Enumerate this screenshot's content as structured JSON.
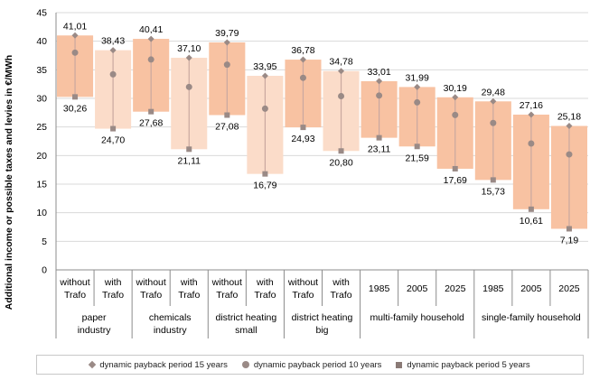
{
  "chart_data": {
    "type": "bar",
    "ylabel": "Additional income or possible taxes and levies in €/MWh",
    "ylim": [
      0,
      45
    ],
    "yticks": [
      "0",
      "5",
      "10",
      "15",
      "20",
      "25",
      "30",
      "35",
      "40",
      "45"
    ],
    "grid": true,
    "legend_position": "bottom",
    "categories": [
      {
        "l1": "without",
        "l2": "Trafo"
      },
      {
        "l1": "with",
        "l2": "Trafo"
      },
      {
        "l1": "without",
        "l2": "Trafo"
      },
      {
        "l1": "with",
        "l2": "Trafo"
      },
      {
        "l1": "without",
        "l2": "Trafo"
      },
      {
        "l1": "with",
        "l2": "Trafo"
      },
      {
        "l1": "without",
        "l2": "Trafo"
      },
      {
        "l1": "with",
        "l2": "Trafo"
      },
      {
        "l1": "1985",
        "l2": ""
      },
      {
        "l1": "2005",
        "l2": ""
      },
      {
        "l1": "2025",
        "l2": ""
      },
      {
        "l1": "1985",
        "l2": ""
      },
      {
        "l1": "2005",
        "l2": ""
      },
      {
        "l1": "2025",
        "l2": ""
      }
    ],
    "groups": [
      {
        "l1": "paper",
        "l2": "industry",
        "span": 2
      },
      {
        "l1": "chemicals",
        "l2": "industry",
        "span": 2
      },
      {
        "l1": "district heating",
        "l2": "small",
        "span": 2
      },
      {
        "l1": "district heating",
        "l2": "big",
        "span": 2
      },
      {
        "l1": "multi-family household",
        "l2": "",
        "span": 3
      },
      {
        "l1": "single-family household",
        "l2": "",
        "span": 3
      }
    ],
    "series": [
      {
        "name": "dynamic payback period 15 years",
        "marker": "diamond",
        "values": [
          41.01,
          38.43,
          40.41,
          37.1,
          39.79,
          33.95,
          36.78,
          34.78,
          33.01,
          31.99,
          30.19,
          29.48,
          27.16,
          25.18
        ],
        "labels": [
          "41,01",
          "38,43",
          "40,41",
          "37,10",
          "39,79",
          "33,95",
          "36,78",
          "34,78",
          "33,01",
          "31,99",
          "30,19",
          "29,48",
          "27,16",
          "25,18"
        ]
      },
      {
        "name": "dynamic payback period 10 years",
        "marker": "circle",
        "values": [
          38.0,
          34.2,
          36.8,
          32.0,
          35.9,
          28.2,
          33.6,
          30.4,
          30.5,
          29.3,
          27.1,
          25.7,
          22.1,
          20.2
        ]
      },
      {
        "name": "dynamic payback period 5 years",
        "marker": "square",
        "values": [
          30.26,
          24.7,
          27.68,
          21.11,
          27.08,
          16.79,
          24.93,
          20.8,
          23.11,
          21.59,
          17.69,
          15.73,
          10.61,
          7.19
        ],
        "labels": [
          "30,26",
          "24,70",
          "27,68",
          "21,11",
          "27,08",
          "16,79",
          "24,93",
          "20,80",
          "23,11",
          "21,59",
          "17,69",
          "15,73",
          "10,61",
          "7,19"
        ]
      }
    ],
    "colors": {
      "bar_dark": "#f8c2a2",
      "bar_light": "#fbdcc9",
      "marker": "#9a8a86",
      "whisker": "#c9a8a0",
      "grid": "#d9d9d9",
      "axis": "#8c8c8c"
    }
  }
}
